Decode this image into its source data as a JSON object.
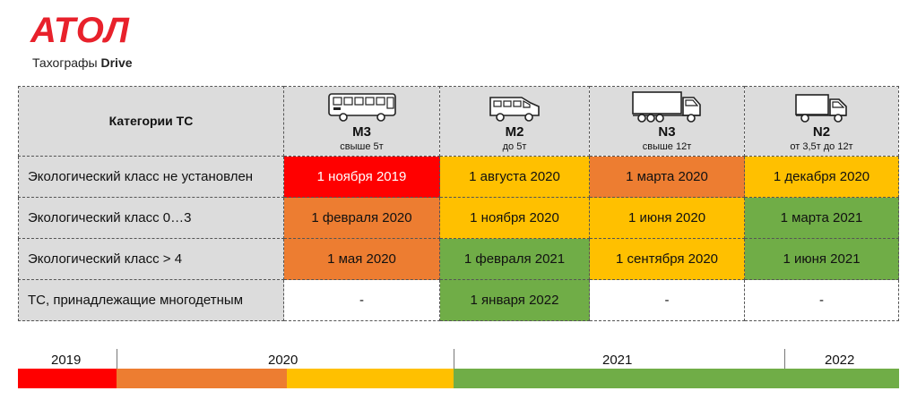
{
  "logo": {
    "mark": "АТОЛ",
    "sub_prefix": "Тахографы ",
    "sub_brand": "Drive"
  },
  "table": {
    "header_title": "Категории ТС",
    "categories": [
      {
        "code": "M3",
        "sub": "свыше 5т",
        "icon": "bus-icon"
      },
      {
        "code": "M2",
        "sub": "до 5т",
        "icon": "minibus-icon"
      },
      {
        "code": "N3",
        "sub": "свыше 12т",
        "icon": "heavy-truck-icon"
      },
      {
        "code": "N2",
        "sub": "от 3,5т до 12т",
        "icon": "medium-truck-icon"
      }
    ],
    "rows": [
      {
        "label": "Экологический класс не установлен",
        "cells": [
          "1 ноября 2019",
          "1 августа 2020",
          "1 марта 2020",
          "1 декабря 2020"
        ],
        "colors": [
          "red",
          "yellow",
          "orange",
          "yellow"
        ]
      },
      {
        "label": "Экологический класс 0…3",
        "cells": [
          "1 февраля 2020",
          "1 ноября 2020",
          "1 июня 2020",
          "1 марта 2021"
        ],
        "colors": [
          "orange",
          "yellow",
          "yellow",
          "green"
        ]
      },
      {
        "label": "Экологический класс > 4",
        "cells": [
          "1 мая 2020",
          "1 февраля 2021",
          "1 сентября 2020",
          "1 июня 2021"
        ],
        "colors": [
          "orange",
          "green",
          "yellow",
          "green"
        ]
      },
      {
        "label": "ТС, принадлежащие многодетным",
        "cells": [
          "-",
          "1 января 2022",
          "-",
          "-"
        ],
        "colors": [
          "white",
          "green",
          "white",
          "white"
        ]
      }
    ]
  },
  "timeline": {
    "years": [
      "2019",
      "2020",
      "2021",
      "2022"
    ],
    "segments_colors": [
      "#ff0000",
      "#ed7d31",
      "#ffc000",
      "#70ad47"
    ]
  },
  "colors": {
    "red": "#ff0000",
    "orange": "#ed7d31",
    "yellow": "#ffc000",
    "green": "#70ad47",
    "brand": "#e8212b",
    "header_gray": "#dcdcdc"
  }
}
